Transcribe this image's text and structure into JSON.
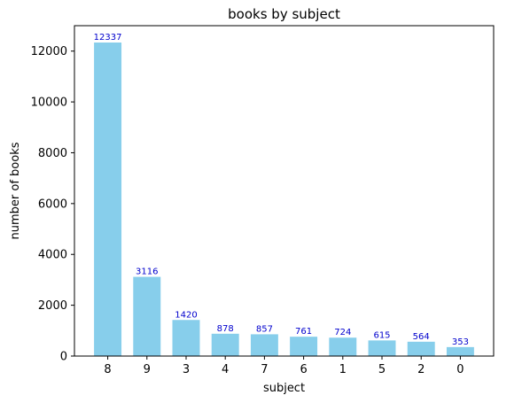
{
  "chart_data": {
    "type": "bar",
    "title": "books by subject",
    "xlabel": "subject",
    "ylabel": "number of books",
    "categories": [
      "8",
      "9",
      "3",
      "4",
      "7",
      "6",
      "1",
      "5",
      "2",
      "0"
    ],
    "values": [
      12337,
      3116,
      1420,
      878,
      857,
      761,
      724,
      615,
      564,
      353
    ],
    "ylim": [
      0,
      13000
    ],
    "yticks": [
      0,
      2000,
      4000,
      6000,
      8000,
      10000,
      12000
    ],
    "bar_color": "#87ceeb",
    "label_color": "#0000cd",
    "grid": false,
    "legend": "none"
  }
}
